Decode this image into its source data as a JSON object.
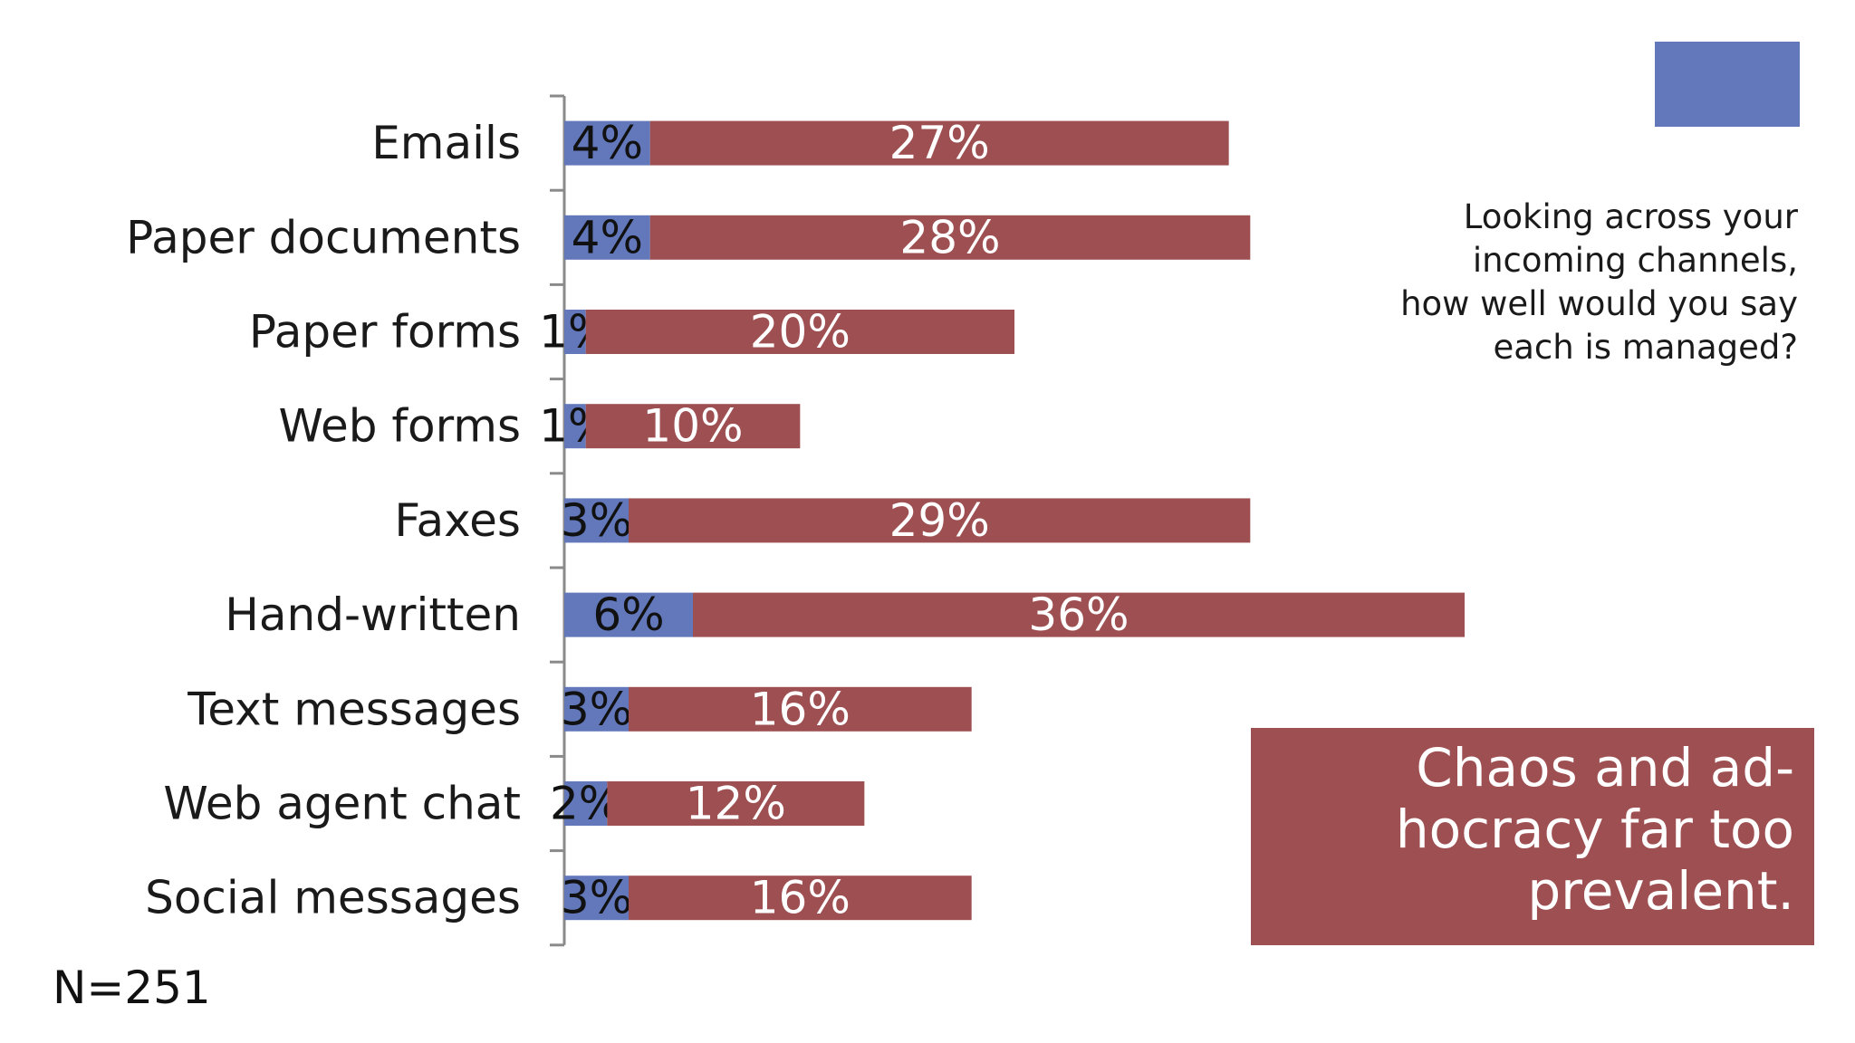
{
  "chart_data": {
    "type": "bar",
    "orientation": "horizontal",
    "stacked": true,
    "categories": [
      "Emails",
      "Paper documents",
      "Paper forms",
      "Web forms",
      "Faxes",
      "Hand-written",
      "Text messages",
      "Web agent chat",
      "Social messages"
    ],
    "series": [
      {
        "values": [
          4,
          4,
          1,
          1,
          3,
          6,
          3,
          2,
          3
        ],
        "labels": [
          "4%",
          "4%",
          "1%",
          "1%",
          "3%",
          "6%",
          "3%",
          "2%",
          "3%"
        ],
        "color": "#6278bb",
        "label_color": "#111111"
      },
      {
        "values": [
          27,
          28,
          20,
          10,
          29,
          36,
          16,
          12,
          16
        ],
        "labels": [
          "27%",
          "28%",
          "20%",
          "10%",
          "29%",
          "36%",
          "16%",
          "12%",
          "16%"
        ],
        "color": "#9e4f52",
        "label_color": "#ffffff"
      }
    ],
    "xlim": [
      0,
      45
    ],
    "grid": false,
    "legend": "top-right"
  },
  "sample_size": "N=251",
  "question": "Looking across your incoming channels, how well would you say each is managed?",
  "callout": {
    "text": "Chaos and ad-hocracy far too prevalent.",
    "color": "#9e4f52"
  },
  "legend_color": "#6278bb",
  "axis_color": "#8a8a8a"
}
